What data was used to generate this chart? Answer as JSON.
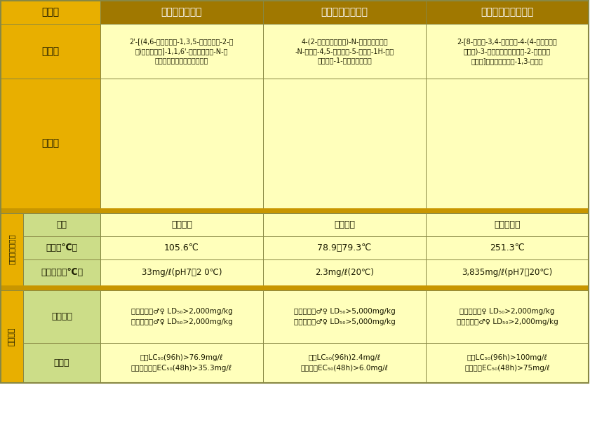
{
  "col_headers": [
    "トリアファモン",
    "フェントラザミド",
    "フェンキノトリオン"
  ],
  "row0_label": "一般名",
  "row1_label": "化学名",
  "row2_label": "構造式",
  "group1_label": "物理化学的性状",
  "group2_label": "原体毒性",
  "sub_labels": [
    "性状",
    "融点（℃）",
    "水溶解度（℃）",
    "人畜毒性",
    "魚毒性"
  ],
  "chem_name": [
    "2'-[(4,6-ジメトキシ-1,3,5-トリアジン-2-イ\nル)カルボニル]-1,1,6'-トリフルオロ-N-メ\nチルメタンスルホンアニリド",
    "4-(2-クロロフェニル)-N-シクロヘキシル\n-N-エチル-4,5-ジヒドロ-5-オキソ-1H-テト\nラゾール-1-カルボキサミド",
    "2-[8-クロロ-3,4-ジヒドロ-4-(4-メトキシフ\nェニル)-3-オキソキノキサリン-2-イルカル\nボニル]シクロヘキサン-1,3-ジオン"
  ],
  "seijo": [
    "白色粉末",
    "白色結晶",
    "淡黄色粉末"
  ],
  "yuuten": [
    "105.6℃",
    "78.9～79.3℃",
    "251.3℃"
  ],
  "suiyoukaido": [
    "33mg/ℓ(pH7、2 0℃)",
    "2.3mg/ℓ(20℃)",
    "3,835mg/ℓ(pH7、20℃)"
  ],
  "jinchiku": [
    "経口ラット♂♀ LD₅₀>2,000mg/kg\n経皮ラット♂♀ LD₅₀>2,000mg/kg",
    "経口ラット♂♀ LD₅₀>5,000mg/kg\n経皮ラット♂♀ LD₅₀>5,000mg/kg",
    "経口ラット♀ LD₅₀>2,000mg/kg\n経皮ラット♂♀ LD₅₀>2,000mg/kg"
  ],
  "gyodoku": [
    "コイLC₅₀(96h)>76.9mg/ℓ\nオオミジンコEC₅₀(48h)>35.3mg/ℓ",
    "コイLC₅₀(96h)2.4mg/ℓ\nミジンコEC₅₀(48h)>6.0mg/ℓ",
    "コイLC₅₀(96h)>100mg/ℓ\nミジンコEC₅₀(48h)>75mg/ℓ"
  ],
  "colors": {
    "orange_dark": "#A07800",
    "orange_med": "#C89600",
    "orange_light": "#E8AF00",
    "yellow_data": "#FFFFBB",
    "green_sub": "#CCDD88",
    "border": "#888844",
    "text_dark": "#1A1A00",
    "white": "#FFFFFF"
  }
}
